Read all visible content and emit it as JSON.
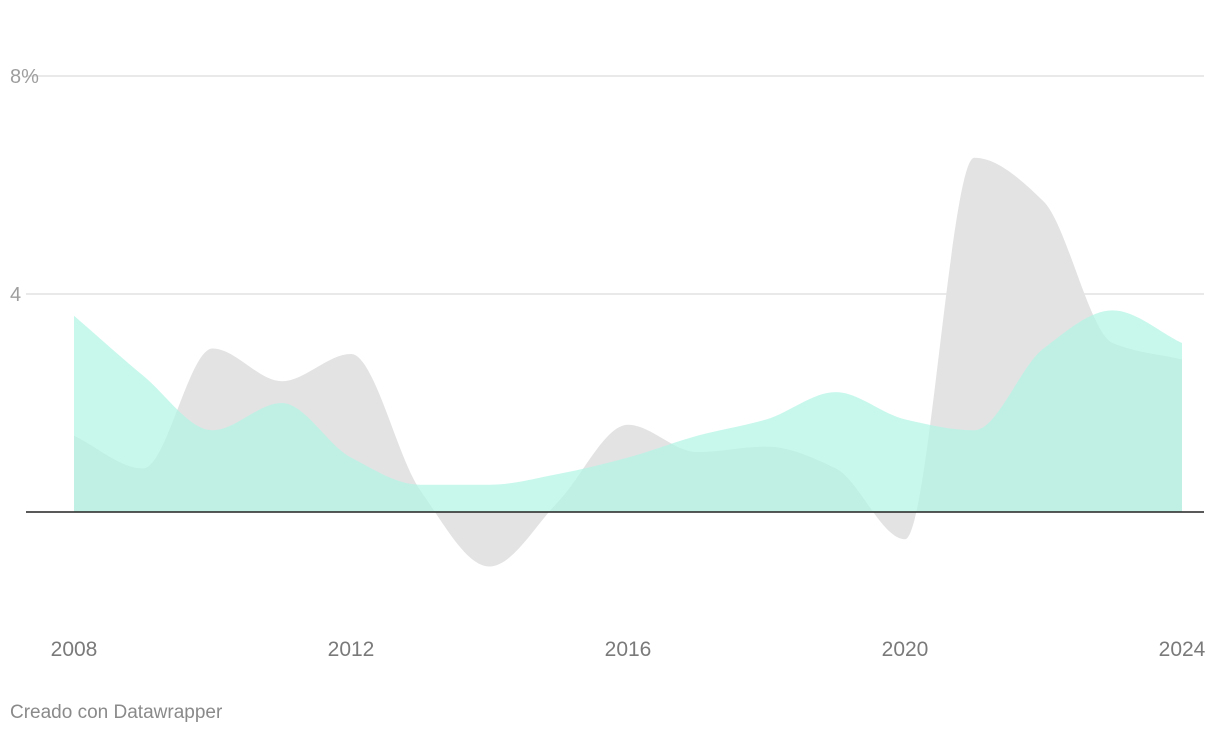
{
  "chart_data": {
    "type": "area",
    "title": "",
    "xlabel": "",
    "ylabel": "",
    "x": [
      2008,
      2009,
      2010,
      2011,
      2012,
      2013,
      2014,
      2015,
      2016,
      2017,
      2018,
      2019,
      2020,
      2021,
      2022,
      2023,
      2024
    ],
    "series": [
      {
        "color": "#e3e3e3",
        "values": [
          1.4,
          0.8,
          3.0,
          2.4,
          2.9,
          0.4,
          -1.0,
          0.2,
          1.6,
          1.1,
          1.2,
          0.8,
          -0.5,
          6.5,
          5.7,
          3.1,
          2.8
        ]
      },
      {
        "color": "#b3f5e4",
        "values": [
          3.6,
          2.5,
          1.5,
          2.0,
          1.0,
          0.5,
          0.5,
          0.7,
          1.0,
          1.4,
          1.7,
          2.2,
          1.7,
          1.5,
          3.0,
          3.7,
          3.1
        ]
      }
    ],
    "overlap_color": "#b1e4d7",
    "ylim": [
      -2,
      8
    ],
    "yticks": [
      {
        "value": 8,
        "label": "8%"
      },
      {
        "value": 4,
        "label": "4"
      }
    ],
    "xticks": [
      {
        "value": 2008,
        "label": "2008"
      },
      {
        "value": 2012,
        "label": "2012"
      },
      {
        "value": 2016,
        "label": "2016"
      },
      {
        "value": 2020,
        "label": "2020"
      },
      {
        "value": 2024,
        "label": "2024"
      }
    ],
    "grid": true,
    "baseline": 0,
    "legend": "none"
  },
  "footer": {
    "credit": "Creado con Datawrapper"
  }
}
